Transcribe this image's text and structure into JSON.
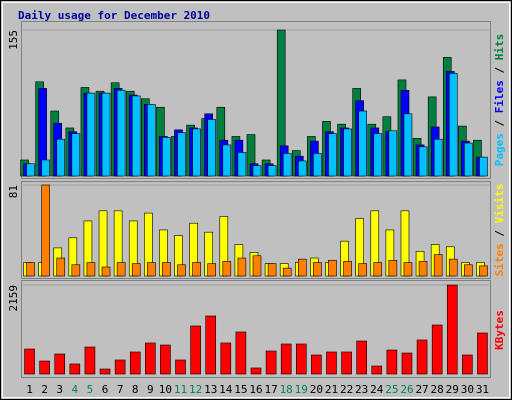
{
  "chart_data": [
    {
      "type": "bar",
      "title": "Daily usage for December 2010",
      "ylim": [
        0,
        155
      ],
      "yticks": [
        155
      ],
      "legend_separator": "/",
      "series": [
        {
          "name": "Hits",
          "color": "#008040",
          "values": [
            17,
            100,
            69,
            51,
            94,
            90,
            99,
            90,
            82,
            73,
            42,
            54,
            61,
            73,
            42,
            44,
            17,
            155,
            27,
            42,
            58,
            55,
            93,
            55,
            63,
            102,
            40,
            84,
            126,
            53,
            38
          ]
        },
        {
          "name": "Files",
          "color": "#0000ff",
          "values": [
            13,
            93,
            56,
            47,
            88,
            88,
            93,
            86,
            76,
            42,
            49,
            51,
            66,
            38,
            38,
            13,
            13,
            32,
            21,
            37,
            47,
            51,
            80,
            51,
            47,
            91,
            33,
            52,
            111,
            37,
            20
          ]
        },
        {
          "name": "Pages",
          "color": "#00c0ff",
          "values": [
            13,
            17,
            39,
            45,
            88,
            88,
            91,
            85,
            76,
            41,
            46,
            50,
            60,
            33,
            25,
            11,
            11,
            24,
            16,
            24,
            45,
            50,
            69,
            45,
            48,
            66,
            31,
            39,
            109,
            35,
            20
          ]
        }
      ]
    },
    {
      "type": "bar",
      "ylim": [
        0,
        81
      ],
      "yticks": [
        81
      ],
      "legend_separator": "/",
      "series": [
        {
          "name": "Visits",
          "color": "#ffff00",
          "values": [
            12,
            12,
            25,
            34,
            49,
            58,
            58,
            49,
            56,
            41,
            36,
            47,
            39,
            53,
            28,
            21,
            11,
            11,
            12,
            16,
            12,
            31,
            51,
            58,
            41,
            58,
            22,
            28,
            26,
            12,
            12
          ]
        },
        {
          "name": "Sites",
          "color": "#ff8000",
          "values": [
            12,
            81,
            16,
            10,
            12,
            8,
            12,
            11,
            12,
            12,
            10,
            12,
            11,
            13,
            16,
            18,
            11,
            7,
            15,
            12,
            14,
            13,
            11,
            12,
            14,
            12,
            13,
            19,
            15,
            10,
            9
          ]
        }
      ]
    },
    {
      "type": "bar",
      "ylim": [
        0,
        2159
      ],
      "yticks": [
        2159
      ],
      "categories": [
        "1",
        "2",
        "3",
        "4",
        "5",
        "6",
        "7",
        "8",
        "9",
        "10",
        "11",
        "12",
        "13",
        "14",
        "15",
        "16",
        "17",
        "18",
        "19",
        "20",
        "21",
        "22",
        "23",
        "24",
        "25",
        "26",
        "27",
        "28",
        "29",
        "30",
        "31"
      ],
      "label_colors": [
        "#000000",
        "#000000",
        "#000000",
        "#00805c",
        "#00805c",
        "#000000",
        "#000000",
        "#000000",
        "#000000",
        "#000000",
        "#00805c",
        "#00805c",
        "#000000",
        "#000000",
        "#000000",
        "#000000",
        "#000000",
        "#00805c",
        "#00805c",
        "#000000",
        "#000000",
        "#000000",
        "#000000",
        "#000000",
        "#00805c",
        "#00805c",
        "#000000",
        "#000000",
        "#000000",
        "#000000",
        "#000000"
      ],
      "series": [
        {
          "name": "KBytes",
          "color": "#ff0000",
          "values": [
            606,
            315,
            485,
            243,
            655,
            121,
            340,
            534,
            752,
            703,
            340,
            1165,
            1407,
            752,
            1019,
            146,
            558,
            728,
            728,
            461,
            534,
            534,
            800,
            194,
            582,
            509,
            825,
            1189,
            2159,
            461,
            995
          ]
        }
      ]
    }
  ]
}
